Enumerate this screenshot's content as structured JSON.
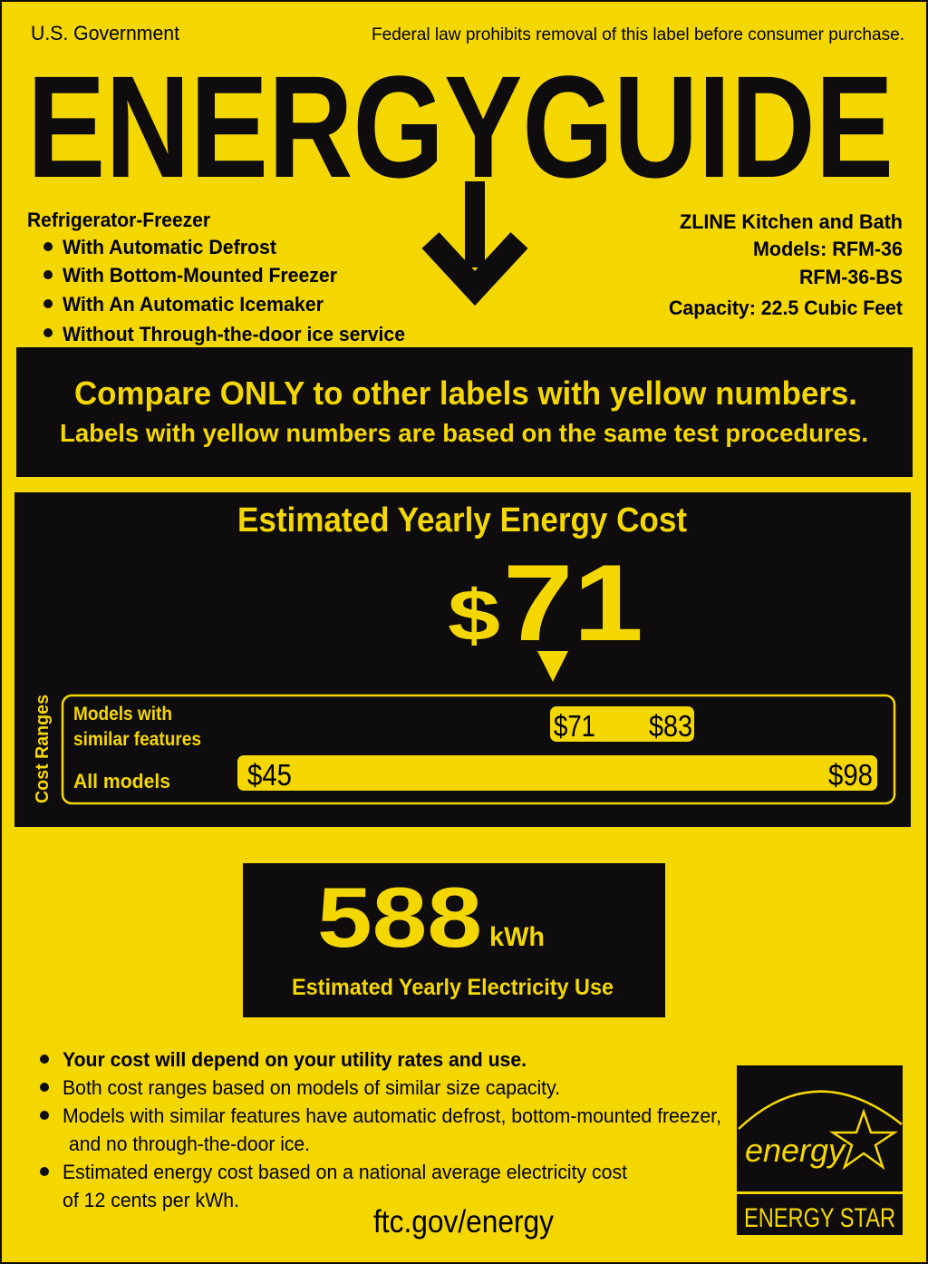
{
  "colors": {
    "yellow": "#f5d700",
    "black": "#0e0c0c"
  },
  "header": {
    "government": "U.S. Government",
    "notice": "Federal law prohibits removal of this label before consumer purchase.",
    "title": "ENERGYGUIDE"
  },
  "product": {
    "type": "Refrigerator-Freezer",
    "features": [
      "With Automatic Defrost",
      "With Bottom-Mounted Freezer",
      "With An Automatic Icemaker",
      "Without Through-the-door ice service"
    ]
  },
  "manufacturer": {
    "name": "ZLINE Kitchen and Bath",
    "models_line1": "Models: RFM-36",
    "models_line2": "RFM-36-BS",
    "capacity": "Capacity: 22.5 Cubic Feet"
  },
  "compare": {
    "line1": "Compare ONLY to other labels with yellow numbers.",
    "line2": "Labels with yellow numbers are based on the same test procedures."
  },
  "cost": {
    "title": "Estimated Yearly Energy Cost",
    "currency": "$",
    "value": "71",
    "ranges_label": "Cost Ranges",
    "similar_label_1": "Models with",
    "similar_label_2": "similar features",
    "all_label": "All models",
    "similar_min": "$71",
    "similar_max": "$83",
    "all_min": "$45",
    "all_max": "$98"
  },
  "electricity": {
    "value": "588",
    "unit": "kWh",
    "label": "Estimated Yearly Electricity Use"
  },
  "notes": [
    "Your cost will depend on your utility rates and use.",
    "Both cost ranges based on models of similar size capacity.",
    "Models with similar features have automatic defrost, bottom-mounted freezer,",
    "and no through-the-door ice.",
    "Estimated energy cost based on a national average electricity cost",
    "of 12 cents per kWh."
  ],
  "footer": {
    "link": "ftc.gov/energy"
  },
  "energy_star": {
    "script": "energy",
    "label": "ENERGY STAR"
  }
}
